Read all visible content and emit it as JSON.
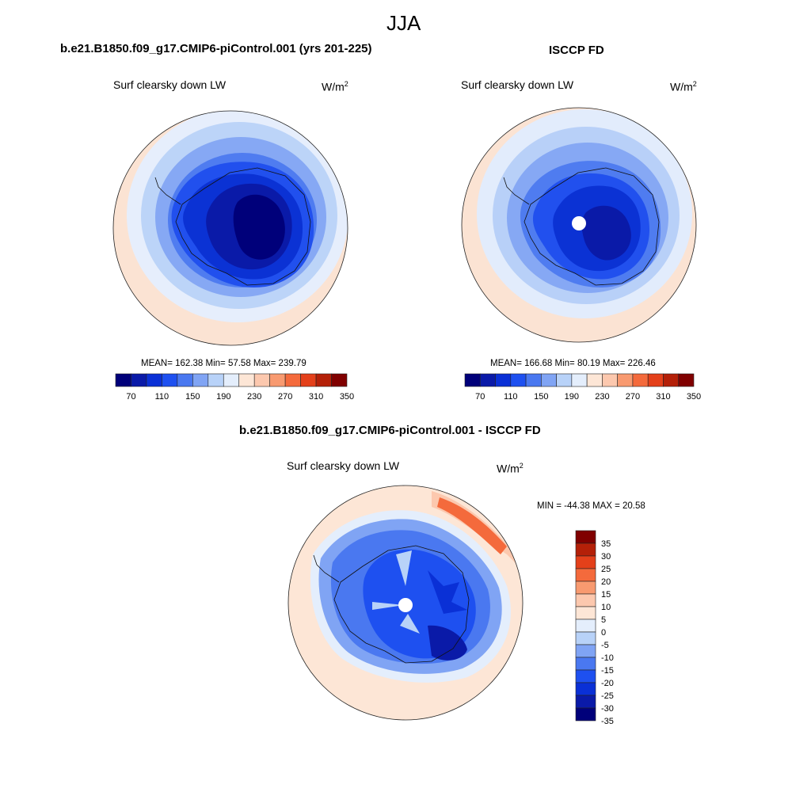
{
  "page": {
    "title": "JJA"
  },
  "colors": {
    "abs_scale": [
      "#00007a",
      "#0a1aa8",
      "#0a30d6",
      "#1e50f0",
      "#4a78f0",
      "#80a4f4",
      "#b8d2f8",
      "#e4eefc",
      "#fde6d6",
      "#fcc8ae",
      "#f89a70",
      "#f46a3c",
      "#e4401a",
      "#b42008",
      "#800000"
    ],
    "diff_scale": [
      "#00007a",
      "#0a1aa8",
      "#0a30d6",
      "#1e50f0",
      "#4a78f0",
      "#80a4f4",
      "#b8d2f8",
      "#e4eefc",
      "#fde6d6",
      "#fcc8ae",
      "#f89a70",
      "#f46a3c",
      "#e4401a",
      "#b42008",
      "#800000"
    ]
  },
  "panels": [
    {
      "id": "model",
      "title": "b.e21.B1850.f09_g17.CMIP6-piControl.001 (yrs 201-225)",
      "variable": "Surf clearsky down LW",
      "units_base": "W/m",
      "units_exp": "2",
      "stats": "MEAN= 162.38  Min=  57.58  Max= 239.79"
    },
    {
      "id": "obs",
      "title": "ISCCP FD",
      "variable": "Surf clearsky down LW",
      "units_base": "W/m",
      "units_exp": "2",
      "stats": "MEAN= 166.68  Min=  80.19  Max= 226.46"
    },
    {
      "id": "diff",
      "title": "b.e21.B1850.f09_g17.CMIP6-piControl.001 - ISCCP FD",
      "variable": "Surf clearsky down LW",
      "units_base": "W/m",
      "units_exp": "2",
      "stats": "MIN = -44.38 MAX =  20.58"
    }
  ],
  "chart_data": [
    {
      "type": "heatmap",
      "projection": "south-polar-stereographic",
      "title": "b.e21.B1850.f09_g17.CMIP6-piControl.001 (yrs 201-225)",
      "variable": "Surf clearsky down LW",
      "units": "W/m2",
      "stats": {
        "mean": 162.38,
        "min": 57.58,
        "max": 239.79
      },
      "colorbar_ticks": [
        "70",
        "110",
        "150",
        "190",
        "230",
        "270",
        "310",
        "350"
      ],
      "colorbar_levels": [
        70,
        90,
        110,
        130,
        150,
        170,
        190,
        210,
        230,
        250,
        270,
        290,
        310,
        330,
        350
      ]
    },
    {
      "type": "heatmap",
      "projection": "south-polar-stereographic",
      "title": "ISCCP FD",
      "variable": "Surf clearsky down LW",
      "units": "W/m2",
      "stats": {
        "mean": 166.68,
        "min": 80.19,
        "max": 226.46
      },
      "colorbar_ticks": [
        "70",
        "110",
        "150",
        "190",
        "230",
        "270",
        "310",
        "350"
      ],
      "colorbar_levels": [
        70,
        90,
        110,
        130,
        150,
        170,
        190,
        210,
        230,
        250,
        270,
        290,
        310,
        330,
        350
      ]
    },
    {
      "type": "heatmap",
      "projection": "south-polar-stereographic",
      "title": "b.e21.B1850.f09_g17.CMIP6-piControl.001 - ISCCP FD",
      "variable": "Surf clearsky down LW",
      "units": "W/m2",
      "stats": {
        "min": -44.38,
        "max": 20.58
      },
      "colorbar_ticks": [
        "35",
        "30",
        "25",
        "20",
        "15",
        "10",
        "5",
        "0",
        "-5",
        "-10",
        "-15",
        "-20",
        "-25",
        "-30",
        "-35"
      ],
      "colorbar_orientation": "vertical"
    }
  ]
}
